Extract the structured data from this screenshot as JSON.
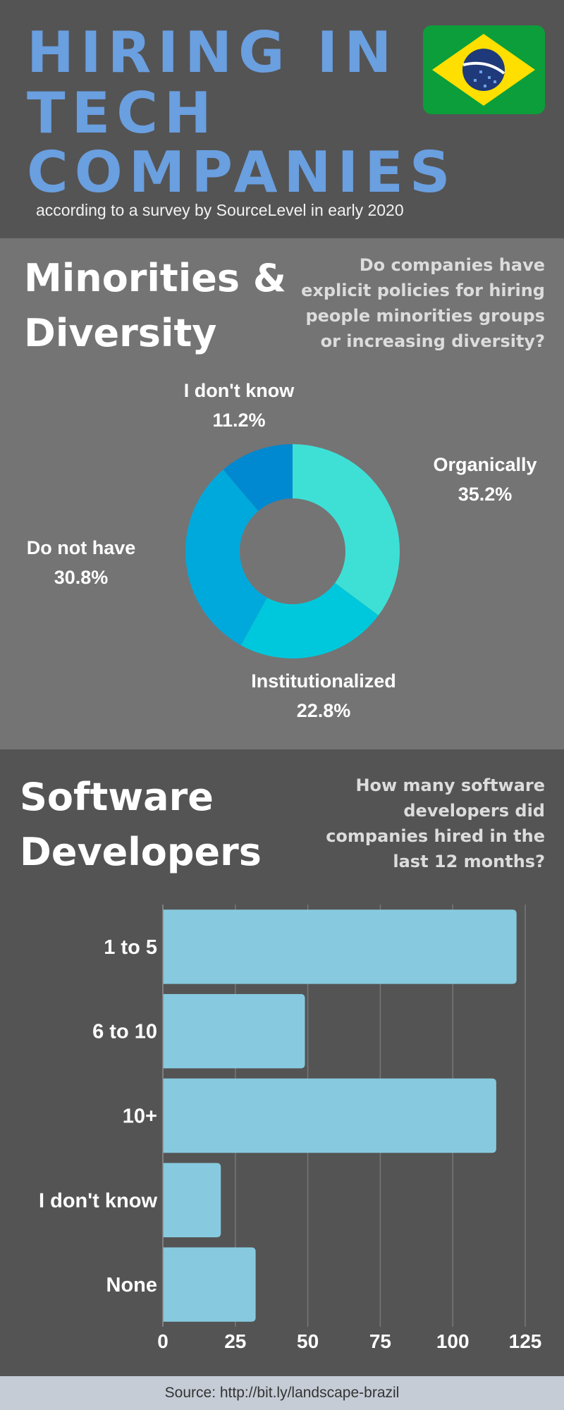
{
  "header": {
    "title": [
      "HIRING IN",
      "TECH",
      "COMPANIES"
    ],
    "subtitle": "according to a survey by SourceLevel in early 2020"
  },
  "chart_data": [
    {
      "type": "pie",
      "title": "Minorities & Diversity",
      "subtitle": "Do companies have explicit policies for hiring people minorities groups or increasing diversity?",
      "categories": [
        "Organically",
        "Institutionalized",
        "Do not have",
        "I don't know"
      ],
      "values": [
        35.2,
        22.8,
        30.8,
        11.2
      ],
      "value_labels": [
        "35.2%",
        "22.8%",
        "30.8%",
        "11.2%"
      ],
      "colors": [
        "#3ee0d6",
        "#00c8dc",
        "#00a9dc",
        "#0088d0"
      ]
    },
    {
      "type": "bar",
      "title": "Software Developers",
      "subtitle": "How many software developers did companies hired in the last 12 months?",
      "categories": [
        "1 to 5",
        "6 to 10",
        "10+",
        "I don't know",
        "None"
      ],
      "values": [
        122,
        49,
        115,
        20,
        32
      ],
      "color": "#87cadf",
      "orientation": "horizontal",
      "xlim": [
        0,
        125
      ],
      "xticks": [
        0,
        25,
        50,
        75,
        100,
        125
      ],
      "grid": true
    }
  ],
  "footer": {
    "source": "Source: http://bit.ly/landscape-brazil"
  }
}
